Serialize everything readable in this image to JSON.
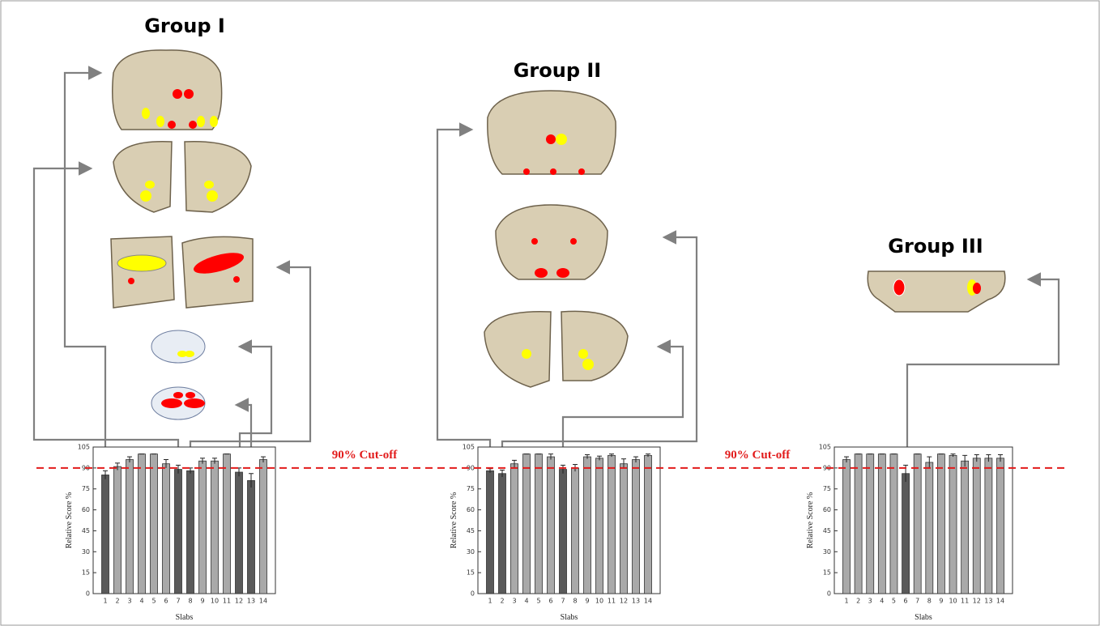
{
  "cutoff": {
    "value": 90,
    "labels": [
      "90% Cut-off",
      "90% Cut-off"
    ]
  },
  "chart_data": [
    {
      "type": "bar",
      "title": "Group I",
      "x_label": "Slabs",
      "y_label": "Relative Score %",
      "categories": [
        "1",
        "2",
        "3",
        "4",
        "5",
        "6",
        "7",
        "8",
        "9",
        "10",
        "11",
        "12",
        "13",
        "14"
      ],
      "values": [
        85,
        91,
        96,
        100,
        100,
        93,
        89,
        88,
        95,
        95,
        100,
        87,
        81,
        96
      ],
      "errors": [
        3,
        2.5,
        2,
        0,
        0,
        3,
        3,
        2,
        2,
        2,
        0,
        3,
        5,
        2
      ],
      "colors": [
        "#5a5a5a",
        "#a9a9a9",
        "#a9a9a9",
        "#a9a9a9",
        "#a9a9a9",
        "#a9a9a9",
        "#5a5a5a",
        "#5a5a5a",
        "#a9a9a9",
        "#a9a9a9",
        "#a9a9a9",
        "#5a5a5a",
        "#5a5a5a",
        "#a9a9a9"
      ],
      "ylim": [
        0,
        105
      ],
      "yticks": [
        0,
        15,
        30,
        45,
        60,
        75,
        90,
        105
      ]
    },
    {
      "type": "bar",
      "title": "Group II",
      "x_label": "Slabs",
      "y_label": "Relative Score %",
      "categories": [
        "1",
        "2",
        "3",
        "4",
        "5",
        "6",
        "7",
        "8",
        "9",
        "10",
        "11",
        "12",
        "13",
        "14"
      ],
      "values": [
        88,
        86,
        93,
        100,
        100,
        98,
        89,
        90,
        98,
        97,
        99,
        93,
        96,
        99
      ],
      "errors": [
        1.5,
        2.5,
        2.5,
        0,
        0,
        2,
        3,
        2.5,
        1.5,
        1.5,
        1,
        3.5,
        2,
        1
      ],
      "colors": [
        "#5a5a5a",
        "#5a5a5a",
        "#a9a9a9",
        "#a9a9a9",
        "#a9a9a9",
        "#a9a9a9",
        "#5a5a5a",
        "#a9a9a9",
        "#a9a9a9",
        "#a9a9a9",
        "#a9a9a9",
        "#a9a9a9",
        "#a9a9a9",
        "#a9a9a9"
      ],
      "ylim": [
        0,
        105
      ],
      "yticks": [
        0,
        15,
        30,
        45,
        60,
        75,
        90,
        105
      ]
    },
    {
      "type": "bar",
      "title": "Group III",
      "x_label": "Slabs",
      "y_label": "Relative Score %",
      "categories": [
        "1",
        "2",
        "3",
        "4",
        "5",
        "6",
        "7",
        "8",
        "9",
        "10",
        "11",
        "12",
        "13",
        "14"
      ],
      "values": [
        96,
        100,
        100,
        100,
        100,
        86,
        100,
        94,
        100,
        99,
        95,
        97,
        97,
        97
      ],
      "errors": [
        2,
        0,
        0,
        0,
        0,
        6,
        0,
        4,
        0,
        1,
        4,
        2.5,
        2.5,
        2.5
      ],
      "colors": [
        "#a9a9a9",
        "#a9a9a9",
        "#a9a9a9",
        "#a9a9a9",
        "#a9a9a9",
        "#5a5a5a",
        "#a9a9a9",
        "#a9a9a9",
        "#a9a9a9",
        "#a9a9a9",
        "#a9a9a9",
        "#a9a9a9",
        "#a9a9a9",
        "#a9a9a9"
      ],
      "ylim": [
        0,
        105
      ],
      "yticks": [
        0,
        15,
        30,
        45,
        60,
        75,
        90,
        105
      ]
    }
  ]
}
